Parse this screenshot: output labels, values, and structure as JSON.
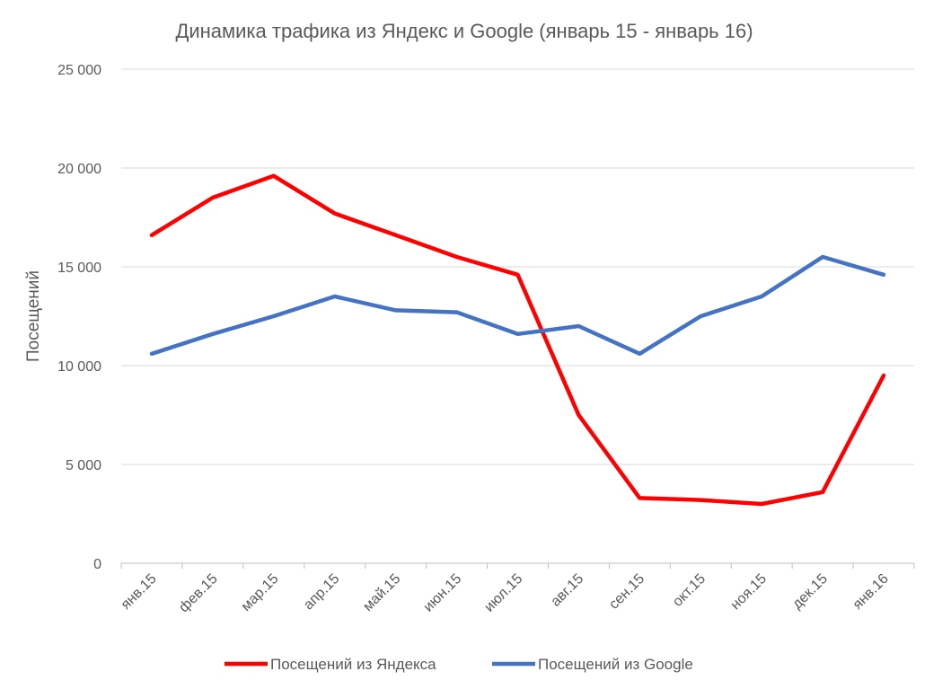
{
  "chart_data": {
    "type": "line",
    "title": "Динамика трафика из Яндекс и Google (январь 15 - январь 16)",
    "xlabel": "",
    "ylabel": "Посещений",
    "categories": [
      "янв.15",
      "фев.15",
      "мар.15",
      "апр.15",
      "май.15",
      "июн.15",
      "июл.15",
      "авг.15",
      "сен.15",
      "окт.15",
      "ноя.15",
      "дек.15",
      "янв.16"
    ],
    "ylim": [
      0,
      25000
    ],
    "yticks": [
      0,
      5000,
      10000,
      15000,
      20000,
      25000
    ],
    "ytick_labels": [
      "0",
      "5 000",
      "10 000",
      "15 000",
      "20 000",
      "25 000"
    ],
    "grid": true,
    "legend_position": "bottom",
    "series": [
      {
        "name": "Посещений из Яндекса",
        "color": "#ff0000",
        "values": [
          16600,
          18500,
          19600,
          17700,
          16600,
          15500,
          14600,
          7500,
          3300,
          3200,
          3000,
          3600,
          9500
        ]
      },
      {
        "name": "Посещений из Google",
        "color": "#4472c4",
        "values": [
          10600,
          11600,
          12500,
          13500,
          12800,
          12700,
          11600,
          12000,
          10600,
          12500,
          13500,
          15500,
          14600
        ]
      }
    ]
  }
}
